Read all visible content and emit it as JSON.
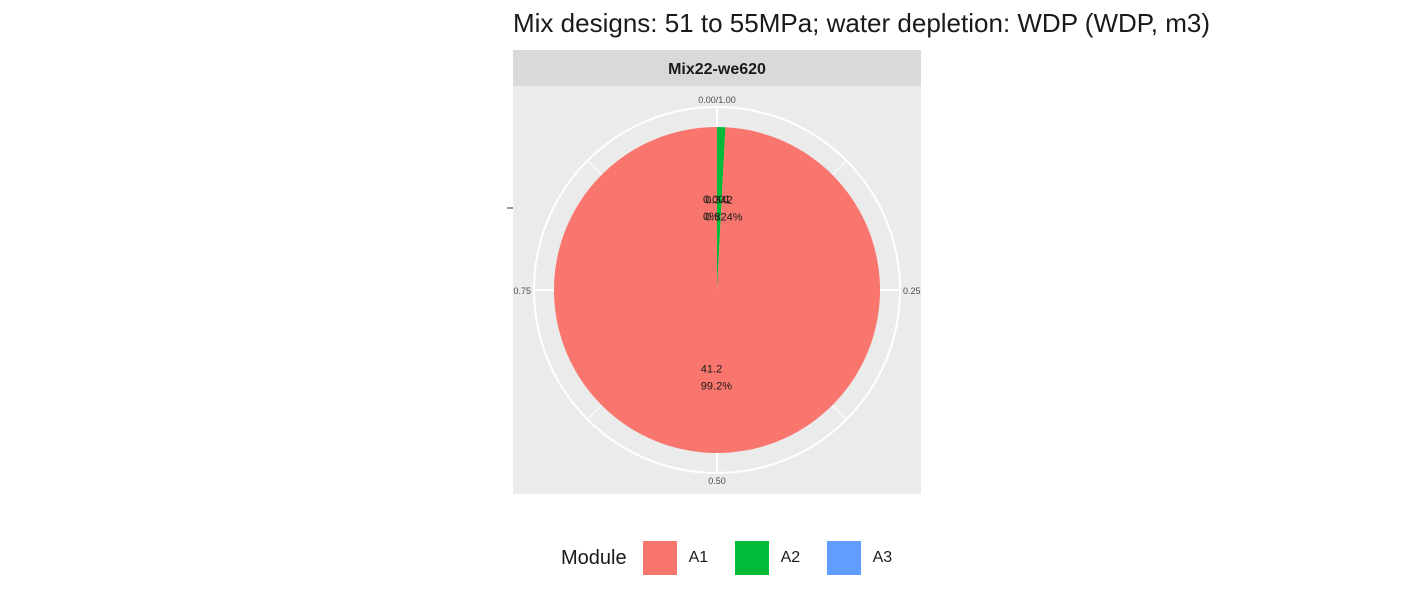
{
  "chart_data": {
    "type": "pie",
    "title": "Mix designs: 51 to 55MPa; water depletion: WDP (WDP, m3)",
    "facet_label": "Mix22-we620",
    "theta_ticks": [
      "0.00/1.00",
      "0.25",
      "0.50",
      "0.75"
    ],
    "legend_title": "Module",
    "legend_position": "bottom",
    "series": [
      {
        "name": "A1",
        "value": 41.2,
        "fraction": 0.992,
        "value_label": "41.2",
        "percent_label": "99.2%",
        "color": "#F8766D"
      },
      {
        "name": "A2",
        "value": 0.342,
        "fraction": 0.0082,
        "value_label": "0.342",
        "percent_label": "0.824%",
        "color": "#00BA38"
      },
      {
        "name": "A3",
        "value": 0.001,
        "fraction": 2e-05,
        "value_label": "0.001",
        "percent_label": "0%",
        "color": "#619CFF"
      }
    ],
    "panel_background": "#EBEBEB",
    "strip_background": "#D9D9D9",
    "grid_color": "#FFFFFF"
  }
}
